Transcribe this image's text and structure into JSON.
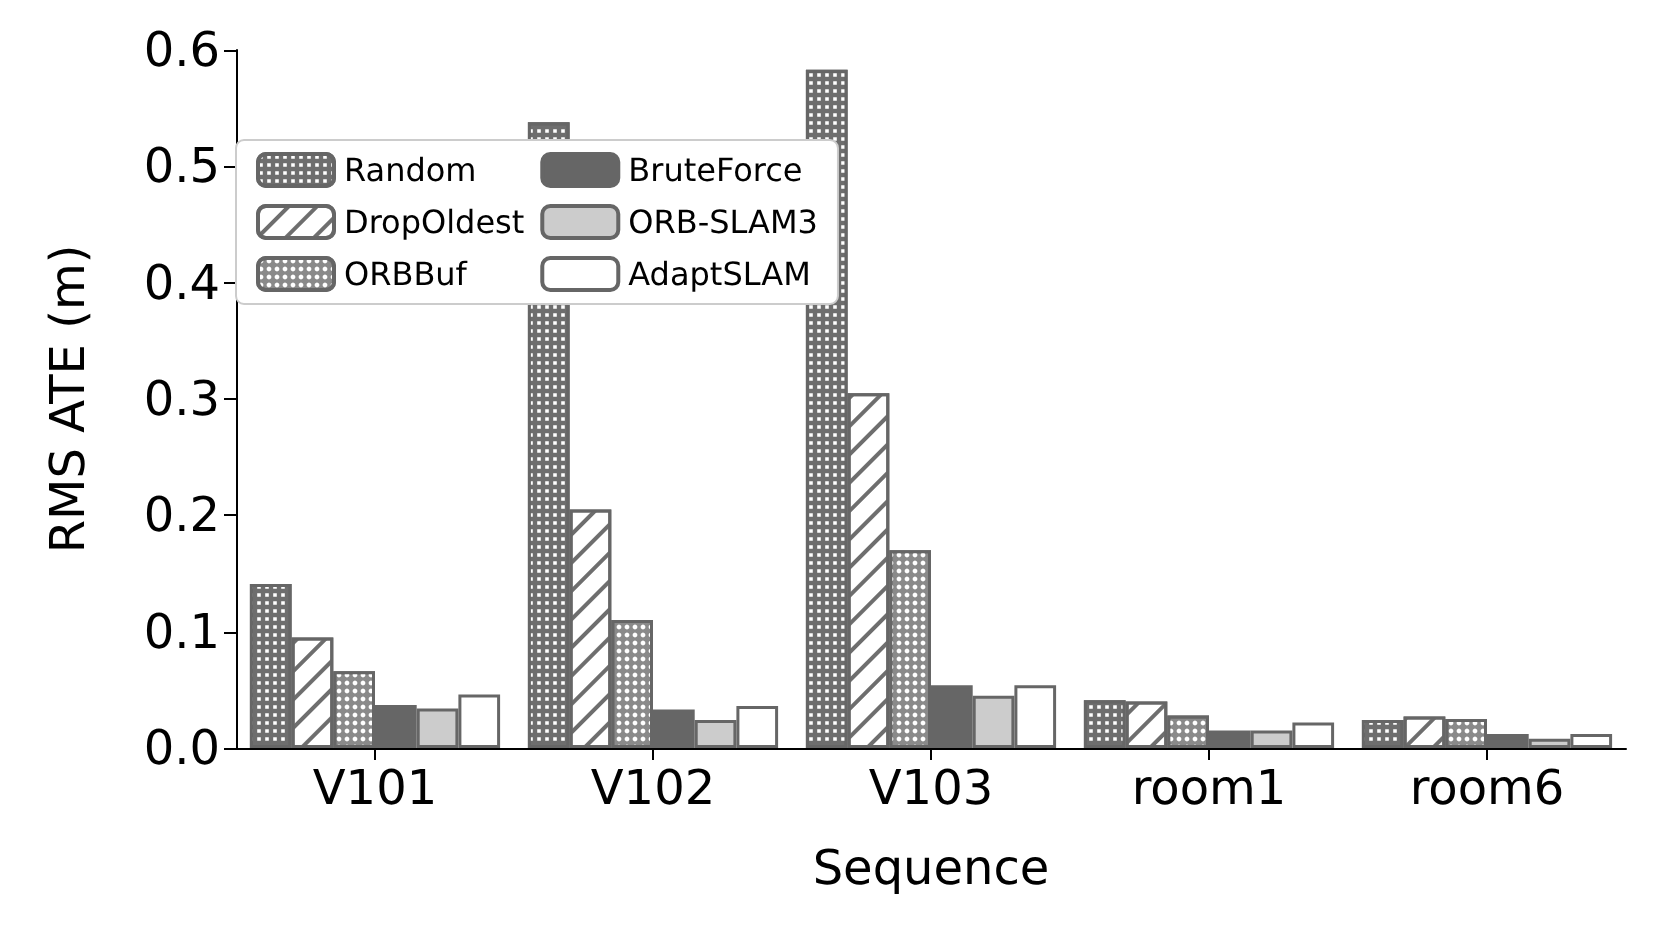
{
  "chart_data": {
    "type": "bar",
    "xlabel": "Sequence",
    "ylabel": "RMS ATE (m)",
    "categories": [
      "V101",
      "V102",
      "V103",
      "room1",
      "room6"
    ],
    "series": [
      {
        "name": "Random",
        "color": "#6e6e6e",
        "values": [
          0.141,
          0.538,
          0.583,
          0.041,
          0.024
        ]
      },
      {
        "name": "DropOldest",
        "color": "#ffffff",
        "values": [
          0.095,
          0.205,
          0.305,
          0.04,
          0.027
        ]
      },
      {
        "name": "ORBBuf",
        "color": "#8a8a8a",
        "values": [
          0.066,
          0.11,
          0.17,
          0.028,
          0.025
        ]
      },
      {
        "name": "BruteForce",
        "color": "#666666",
        "values": [
          0.037,
          0.033,
          0.054,
          0.015,
          0.012
        ]
      },
      {
        "name": "ORB-SLAM3",
        "color": "#cccccc",
        "values": [
          0.034,
          0.024,
          0.045,
          0.015,
          0.008
        ]
      },
      {
        "name": "AdaptSLAM",
        "color": "#ffffff",
        "values": [
          0.046,
          0.036,
          0.054,
          0.022,
          0.012
        ]
      }
    ],
    "ylim": [
      0,
      0.6
    ],
    "yticks": [
      {
        "value": 0,
        "label": "0.0"
      },
      {
        "value": 0.1,
        "label": "0.1"
      },
      {
        "value": 0.2,
        "label": "0.2"
      },
      {
        "value": 0.3,
        "label": "0.3"
      },
      {
        "value": 0.4,
        "label": "0.4"
      },
      {
        "value": 0.5,
        "label": "0.5"
      },
      {
        "value": 0.6,
        "label": "0.6"
      }
    ],
    "legend": "top left",
    "grid": false
  }
}
